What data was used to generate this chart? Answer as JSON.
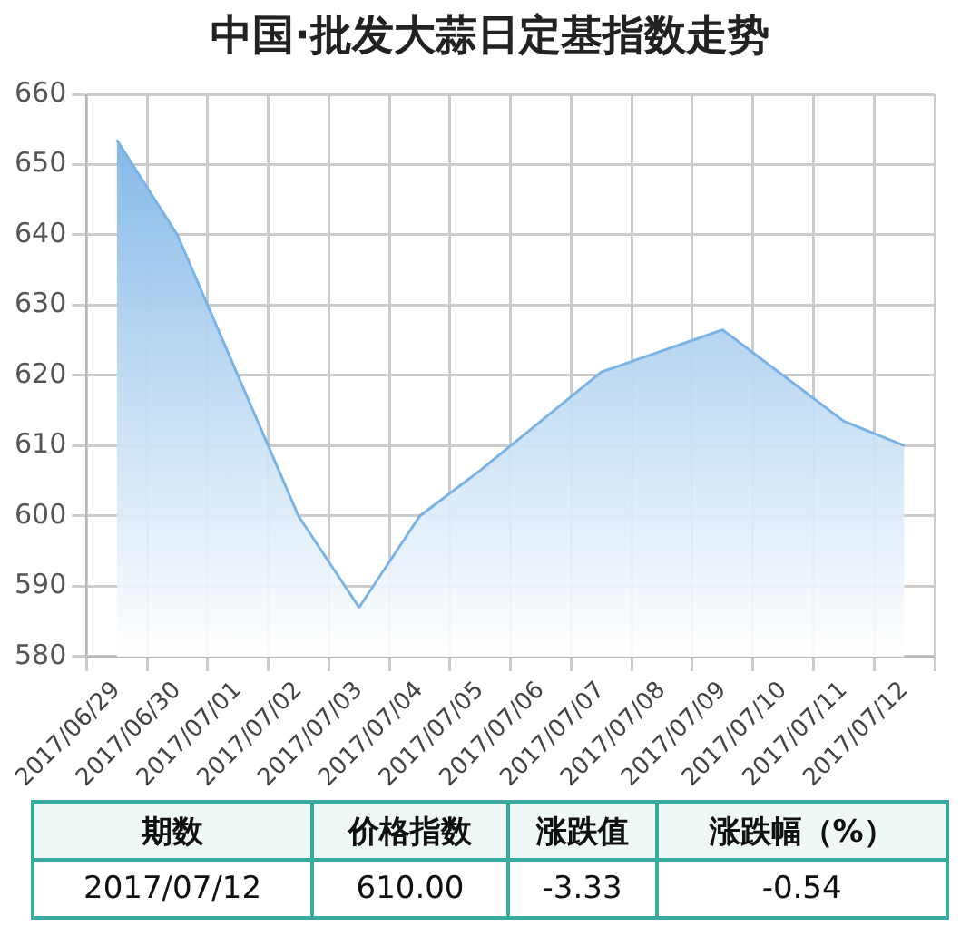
{
  "chart_data": {
    "type": "area",
    "title": "中国·批发大蒜日定基指数走势",
    "categories": [
      "2017/06/29",
      "2017/06/30",
      "2017/07/01",
      "2017/07/02",
      "2017/07/03",
      "2017/07/04",
      "2017/07/05",
      "2017/07/06",
      "2017/07/07",
      "2017/07/08",
      "2017/07/09",
      "2017/07/10",
      "2017/07/11",
      "2017/07/12"
    ],
    "series": [
      {
        "color": "#7ab3e6",
        "values": [
          653.5,
          640,
          620,
          600,
          587,
          600,
          606.5,
          613.5,
          620.5,
          623.5,
          626.5,
          620,
          613.5,
          610
        ]
      }
    ],
    "ylim": [
      580,
      660
    ],
    "yticks": [
      580,
      590,
      600,
      610,
      620,
      630,
      640,
      650,
      660
    ],
    "grid": true,
    "legend": false,
    "marker": "none",
    "annotations": [
      "期数",
      "价格指数",
      "涨跌值",
      "涨跌幅（%）",
      "2017/07/12",
      "610.00",
      "-3.33",
      "-0.54"
    ]
  }
}
